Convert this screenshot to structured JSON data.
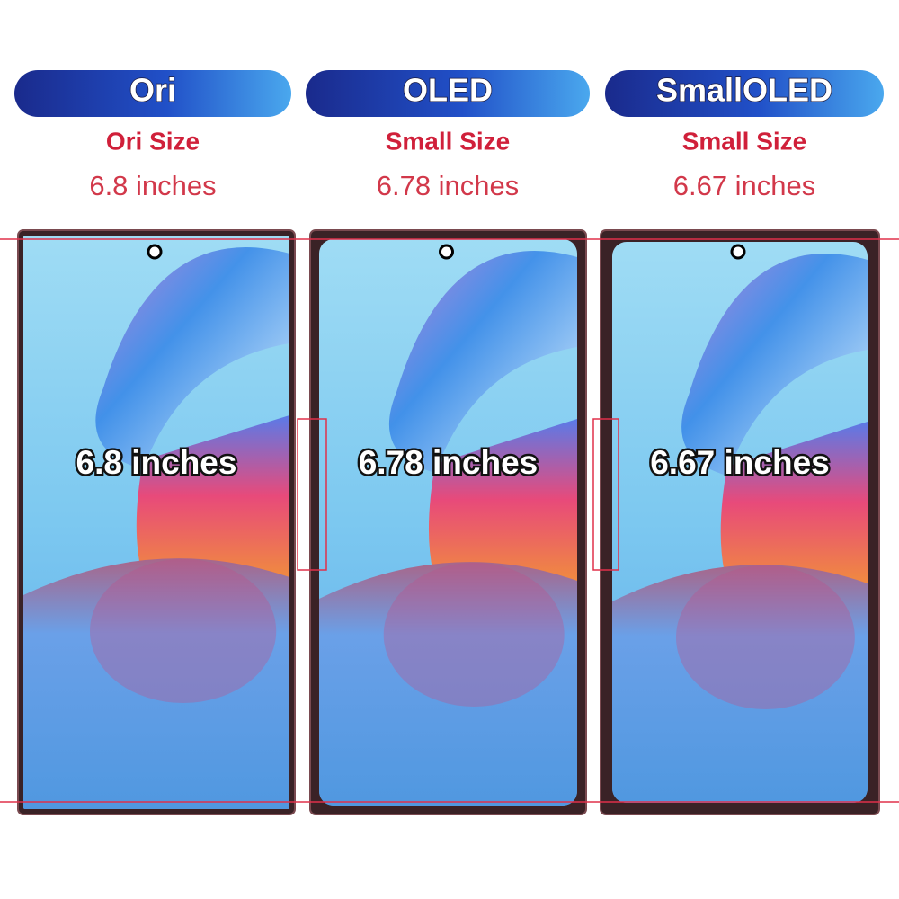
{
  "columns": [
    {
      "badge": "Ori",
      "size": "Ori Size",
      "inches": "6.8 inches",
      "overlay": "6.8 inches"
    },
    {
      "badge": "OLED",
      "size": "Small Size",
      "inches": "6.78 inches",
      "overlay": "6.78 inches"
    },
    {
      "badge": "SmallOLED",
      "size": "Small Size",
      "inches": "6.67 inches",
      "overlay": "6.67 inches"
    }
  ]
}
